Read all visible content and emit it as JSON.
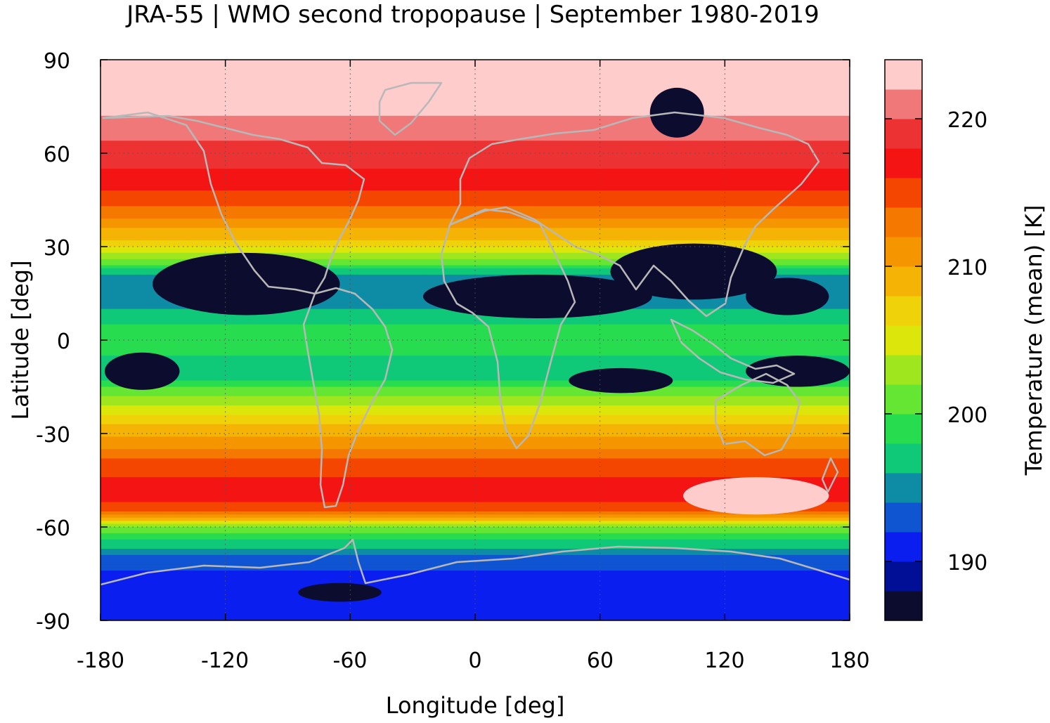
{
  "title": "JRA-55 | WMO second tropopause | September 1980-2019",
  "xlabel": "Longitude [deg]",
  "ylabel": "Latitude [deg]",
  "colorbar_label": "Temperature (mean) [K]",
  "x_ticks": [
    "-180",
    "-120",
    "-60",
    "0",
    "60",
    "120",
    "180"
  ],
  "y_ticks": [
    "90",
    "60",
    "30",
    "0",
    "-30",
    "-60",
    "-90"
  ],
  "colorbar_ticks": [
    "220",
    "210",
    "200",
    "190"
  ],
  "chart_data": {
    "type": "heatmap",
    "title": "JRA-55 | WMO second tropopause | September 1980-2019",
    "xlabel": "Longitude [deg]",
    "ylabel": "Latitude [deg]",
    "xlim": [
      -180,
      180
    ],
    "ylim": [
      -90,
      90
    ],
    "grid": true,
    "colorbar": {
      "label": "Temperature (mean) [K]",
      "range": [
        186,
        224
      ],
      "step": 2,
      "ticks": [
        190,
        200,
        210,
        220
      ],
      "colors": [
        "#0c0c2e",
        "#000f96",
        "#0a1ef0",
        "#0f55d2",
        "#0f8ca5",
        "#0fc878",
        "#28dc50",
        "#64e632",
        "#a0e61e",
        "#dce60a",
        "#f0d20a",
        "#f5b405",
        "#f59600",
        "#f57800",
        "#f54600",
        "#f51414",
        "#ec3232",
        "#f07878",
        "#ffcccc"
      ]
    },
    "zonal_mean_temperature_K": {
      "lat": [
        90,
        80,
        70,
        60,
        50,
        40,
        30,
        20,
        10,
        0,
        -10,
        -20,
        -30,
        -40,
        -50,
        -55,
        -60,
        -70,
        -80,
        -90
      ],
      "values": [
        223.5,
        223,
        221.8,
        219,
        217,
        212.5,
        206.5,
        195,
        196,
        200,
        196,
        203.5,
        209.5,
        215,
        217.5,
        214,
        202,
        193,
        190.5,
        190
      ]
    },
    "regional_features": [
      {
        "region": "northern subtropics 10N-30N",
        "temperature_K": 186,
        "description": "dark cold band"
      },
      {
        "region": "southern tropics 5S-20S",
        "temperature_K": 186,
        "description": "dark cold patches"
      },
      {
        "region": "Arctic around 90-110E",
        "temperature_K": 186,
        "description": "cold patch within warm polar cap"
      },
      {
        "region": "southern mid-latitudes 100E-170E near 50S",
        "temperature_K": 223.5,
        "description": "warm maximum"
      },
      {
        "region": "Antarctica around 60W-80W",
        "temperature_K": 186.5,
        "description": "coldest polar patch"
      }
    ]
  }
}
